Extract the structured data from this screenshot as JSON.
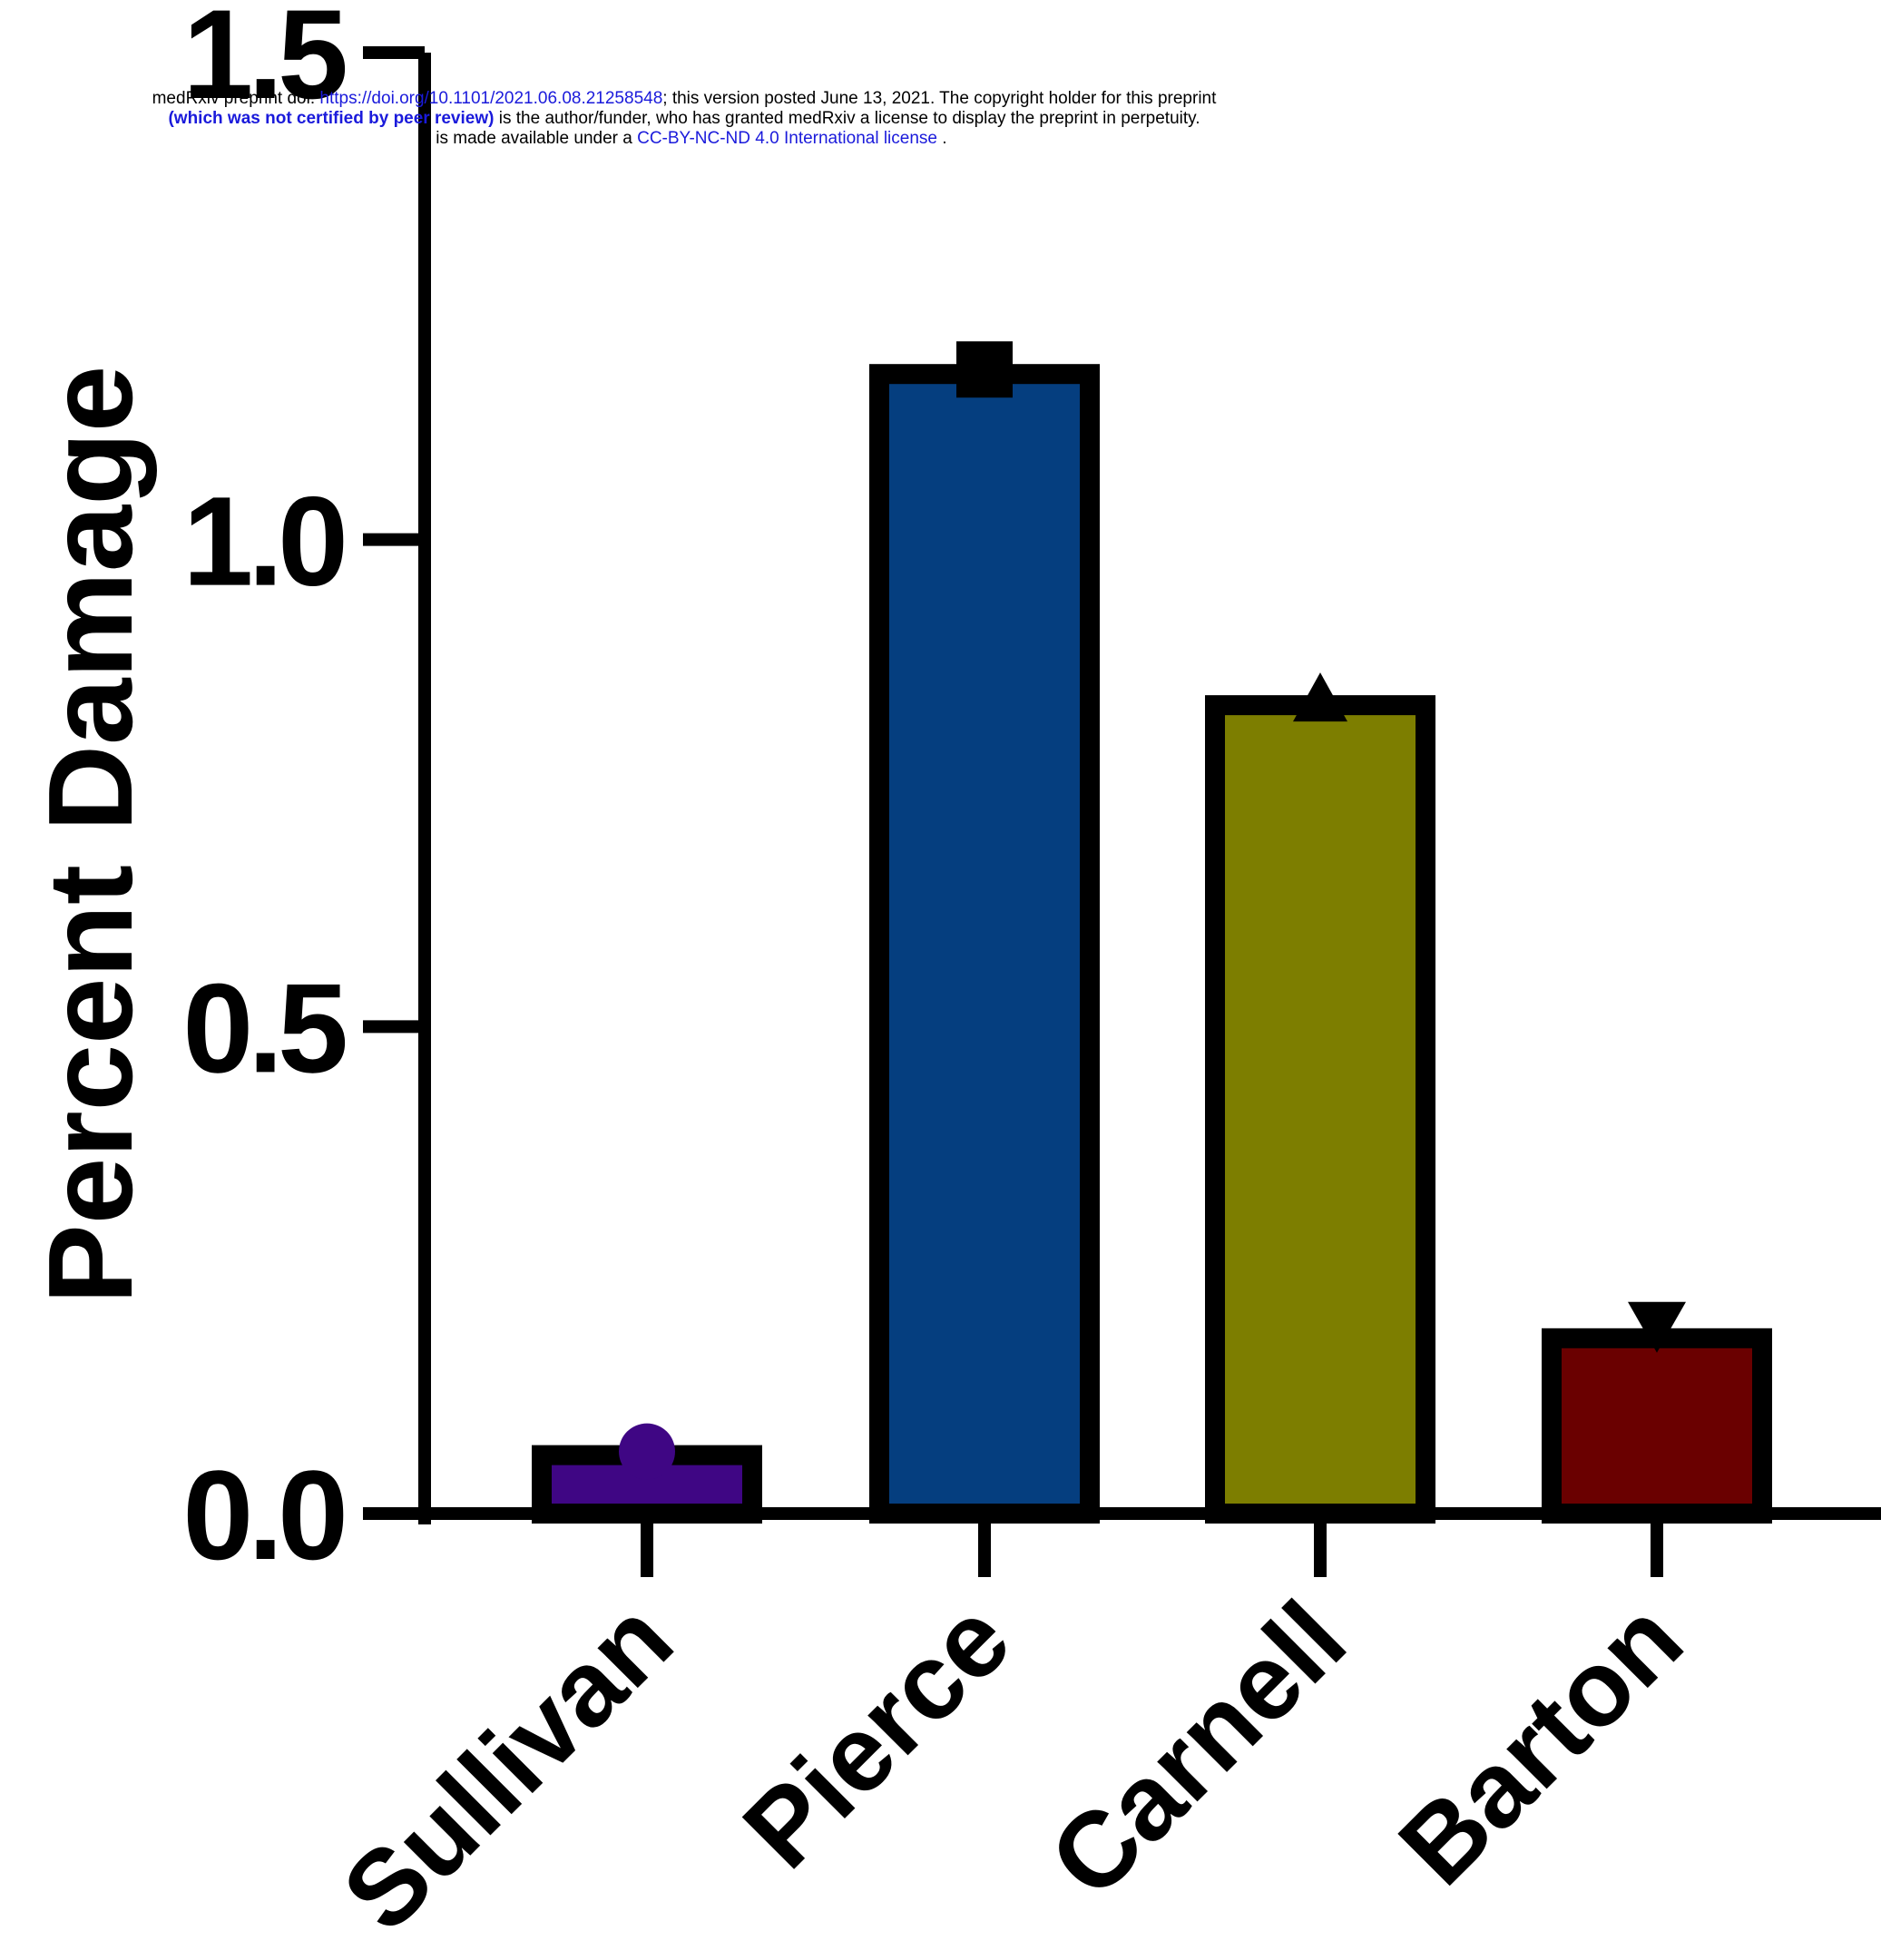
{
  "preprint_notice": {
    "line1_a": "medRxiv preprint doi: ",
    "line1_link": "https://doi.org/10.1101/2021.06.08.21258548",
    "line1_b": "; this version posted June 13, 2021. The copyright holder for this preprint",
    "line2_a": "(which was not certified by peer review)",
    "line2_b": " is the author/funder, who has granted medRxiv a license to display the preprint in perpetuity.",
    "line3_a": "It is made available under a ",
    "line3_link": "CC-BY-NC-ND 4.0 International license",
    "line3_b": " ."
  },
  "chart_data": {
    "type": "bar",
    "ylabel": "Percent Damage",
    "xlabel": "",
    "ylim": [
      0,
      1.5
    ],
    "yticks": [
      0.0,
      0.5,
      1.0,
      1.5
    ],
    "ytick_labels": [
      "0.0",
      "0.5",
      "1.0",
      "1.5"
    ],
    "categories": [
      "Sullivan",
      "Pierce",
      "Carnell",
      "Barton"
    ],
    "values": [
      0.06,
      1.17,
      0.83,
      0.18
    ],
    "markers": [
      "circle",
      "square",
      "triangle-up",
      "triangle-down"
    ],
    "colors": [
      "#3f0684",
      "#053e7f",
      "#7d7e00",
      "#6a0000"
    ],
    "grid": false
  }
}
